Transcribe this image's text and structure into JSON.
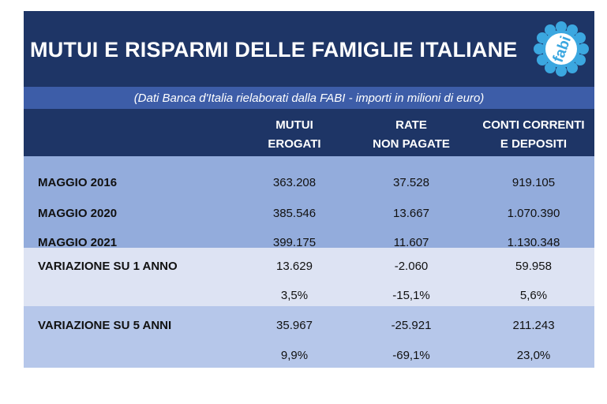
{
  "header": {
    "title": "MUTUI E RISPARMI DELLE FAMIGLIE ITALIANE",
    "subtitle": "(Dati Banca d'Italia rielaborati dalla FABI - importi in milioni di euro)",
    "logo_text": "fabi"
  },
  "columns": [
    {
      "line1": "MUTUI",
      "line2": "EROGATI"
    },
    {
      "line1": "RATE",
      "line2": "NON PAGATE"
    },
    {
      "line1": "CONTI CORRENTI",
      "line2": "E DEPOSITI"
    }
  ],
  "rows": [
    {
      "label": "MAGGIO 2016",
      "values": [
        "363.208",
        "37.528",
        "919.105"
      ]
    },
    {
      "label": "MAGGIO 2020",
      "values": [
        "385.546",
        "13.667",
        "1.070.390"
      ]
    },
    {
      "label": "MAGGIO 2021",
      "values": [
        "399.175",
        "11.607",
        "1.130.348"
      ]
    },
    {
      "label": "VARIAZIONE SU 1 ANNO",
      "values": [
        "13.629",
        "-2.060",
        "59.958"
      ]
    },
    {
      "label": "",
      "values": [
        "3,5%",
        "-15,1%",
        "5,6%"
      ]
    },
    {
      "label": "VARIAZIONE SU 5 ANNI",
      "values": [
        "35.967",
        "-25.921",
        "211.243"
      ]
    },
    {
      "label": "",
      "values": [
        "9,9%",
        "-69,1%",
        "23,0%"
      ]
    }
  ],
  "colors": {
    "title_bg": "#1e3566",
    "subtitle_bg": "#3d5da8",
    "block_dark": "#93acdc",
    "block_light": "#dde3f3",
    "block_mid": "#b6c7ea",
    "logo_blue": "#3ba7e0"
  }
}
